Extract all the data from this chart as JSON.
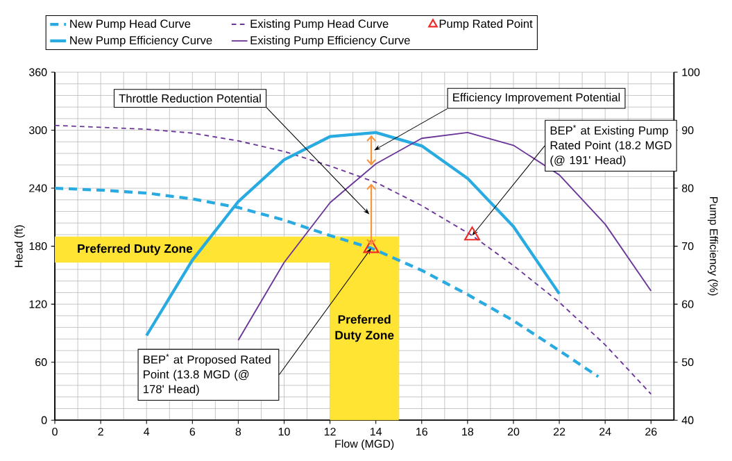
{
  "chart_data": {
    "type": "line",
    "xlabel": "Flow (MGD)",
    "ylabel": "Head (ft)",
    "y2label": "Pump Efficiency (%)",
    "xlim": [
      0,
      27
    ],
    "xticks": [
      0,
      2,
      4,
      6,
      8,
      10,
      12,
      14,
      16,
      18,
      20,
      22,
      24,
      26
    ],
    "ylim": [
      0,
      360
    ],
    "yticks": [
      0,
      60,
      120,
      180,
      240,
      300,
      360
    ],
    "y2lim": [
      40,
      100
    ],
    "y2ticks": [
      40,
      50,
      60,
      70,
      80,
      90,
      100
    ],
    "grid": true,
    "legend": "top",
    "series": [
      {
        "name": "New Pump Head Curve",
        "color": "#29abe2",
        "line_style": "dashed",
        "x": [
          0,
          2,
          4,
          6,
          8,
          10,
          12,
          13.8,
          16,
          18,
          20,
          22,
          23.7
        ],
        "values": [
          240,
          238,
          235,
          229,
          220,
          207,
          191,
          178,
          155,
          130,
          103,
          72,
          45
        ]
      },
      {
        "name": "New Pump Efficiency Curve",
        "color": "#29abe2",
        "axis": "y2",
        "line_style": "solid",
        "x": [
          4,
          6,
          8,
          10,
          12,
          14,
          16,
          18,
          20,
          22
        ],
        "values": [
          54.6,
          67.6,
          77.7,
          84.9,
          88.9,
          89.6,
          87.3,
          81.7,
          73.4,
          61.8
        ]
      },
      {
        "name": "Existing Pump Head Curve",
        "color": "#6a3499",
        "line_style": "dashed",
        "x": [
          0,
          2,
          4,
          6,
          8,
          10,
          12,
          14,
          16,
          18.2,
          20,
          22,
          24,
          26
        ],
        "values": [
          305,
          303,
          301,
          297,
          289,
          278,
          263,
          246,
          222,
          191,
          160,
          122,
          78,
          27
        ]
      },
      {
        "name": "Existing Pump Efficiency Curve",
        "color": "#6a3499",
        "axis": "y2",
        "line_style": "solid",
        "x": [
          8,
          10,
          12,
          14,
          16,
          18,
          20,
          22,
          24,
          26
        ],
        "values": [
          53.8,
          67.2,
          77.5,
          84.2,
          88.6,
          89.6,
          87.4,
          82.3,
          73.8,
          62.3
        ]
      },
      {
        "name": "Pump Rated Point",
        "type": "scatter",
        "marker": "triangle",
        "color": "#ee2a24",
        "x": [
          13.8,
          18.2
        ],
        "values": [
          178,
          191
        ]
      }
    ],
    "bands": [
      {
        "axis": "y",
        "from": 163,
        "to": 190,
        "label": "Preferred Duty Zone",
        "color": "#ffe433"
      },
      {
        "axis": "x",
        "from": 12,
        "to": 15,
        "label": "Preferred Duty Zone",
        "color": "#ffe433"
      }
    ],
    "annotations": [
      "Throttle Reduction Potential",
      "Efficiency Improvement Potential",
      {
        "text": "BEP$^{*}$ at Existing Pump Rated Point (18.2 MGD (@ 191' Head)",
        "x": 18.2,
        "y": 191
      },
      {
        "text": "BEP$^{*}$ at Proposed Rated Point (13.8 MGD (@ 178' Head)",
        "x": 13.8,
        "y": 178
      }
    ]
  }
}
